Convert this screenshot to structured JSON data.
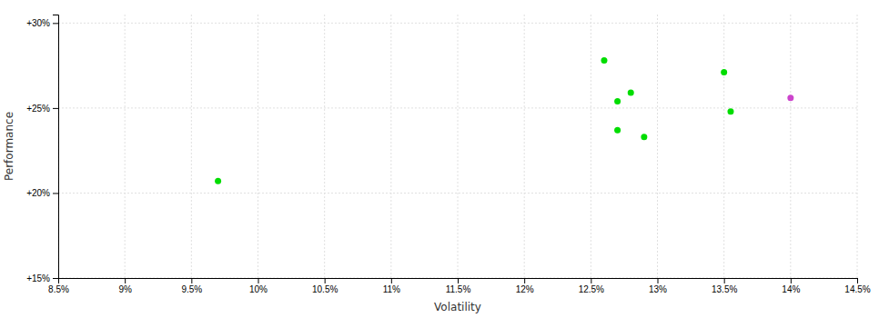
{
  "chart_data": {
    "type": "scatter",
    "xlabel": "Volatility",
    "ylabel": "Performance",
    "xlim": [
      0.085,
      0.145
    ],
    "ylim": [
      0.15,
      0.305
    ],
    "xticks": [
      {
        "value": 0.085,
        "label": "8.5%"
      },
      {
        "value": 0.09,
        "label": "9%"
      },
      {
        "value": 0.095,
        "label": "9.5%"
      },
      {
        "value": 0.1,
        "label": "10%"
      },
      {
        "value": 0.105,
        "label": "10.5%"
      },
      {
        "value": 0.11,
        "label": "11%"
      },
      {
        "value": 0.115,
        "label": "11.5%"
      },
      {
        "value": 0.12,
        "label": "12%"
      },
      {
        "value": 0.125,
        "label": "12.5%"
      },
      {
        "value": 0.13,
        "label": "13%"
      },
      {
        "value": 0.135,
        "label": "13.5%"
      },
      {
        "value": 0.14,
        "label": "14%"
      },
      {
        "value": 0.145,
        "label": "14.5%"
      }
    ],
    "yticks": [
      {
        "value": 0.15,
        "label": "+15%"
      },
      {
        "value": 0.2,
        "label": "+20%"
      },
      {
        "value": 0.25,
        "label": "+25%"
      },
      {
        "value": 0.3,
        "label": "+30%"
      }
    ],
    "grid": true,
    "series": [
      {
        "color": "#00dd00",
        "x": [
          0.097,
          0.126,
          0.127,
          0.128,
          0.127,
          0.129,
          0.135,
          0.1355
        ],
        "values": [
          0.207,
          0.278,
          0.254,
          0.259,
          0.237,
          0.233,
          0.271,
          0.248
        ]
      },
      {
        "color": "#cc44cc",
        "x": [
          0.14
        ],
        "values": [
          0.256
        ]
      }
    ]
  }
}
